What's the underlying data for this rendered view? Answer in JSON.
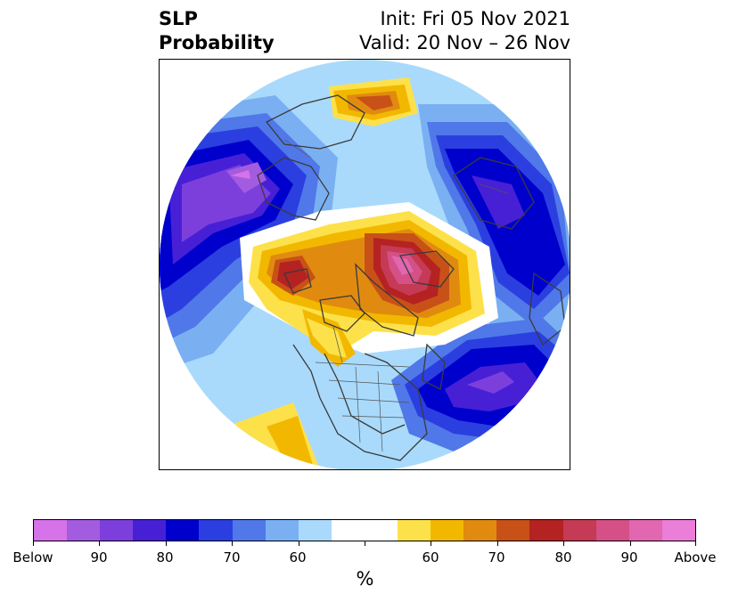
{
  "header": {
    "left_line1": "SLP",
    "left_line2": "Probability",
    "right_line1": "Init: Fri 05 Nov 2021",
    "right_line2": "Valid: 20 Nov – 26 Nov"
  },
  "colorbar": {
    "colors": [
      "#d673e8",
      "#a35ce0",
      "#7d3fdc",
      "#4720d6",
      "#0000cc",
      "#2b3fe0",
      "#5078e8",
      "#7ab0f2",
      "#a9dafc",
      "#ffffff",
      "#ffffff",
      "#fde14a",
      "#f2b800",
      "#e08b10",
      "#c85118",
      "#b52222",
      "#c53a55",
      "#d45087",
      "#e067b0",
      "#ea7ed9"
    ],
    "labels": [
      "Below",
      "90",
      "80",
      "70",
      "60",
      "60",
      "70",
      "80",
      "90",
      "Above"
    ],
    "unit": "%"
  },
  "map": {
    "projection": "north-polar-stereographic",
    "field": "sea-level-pressure-probability"
  }
}
